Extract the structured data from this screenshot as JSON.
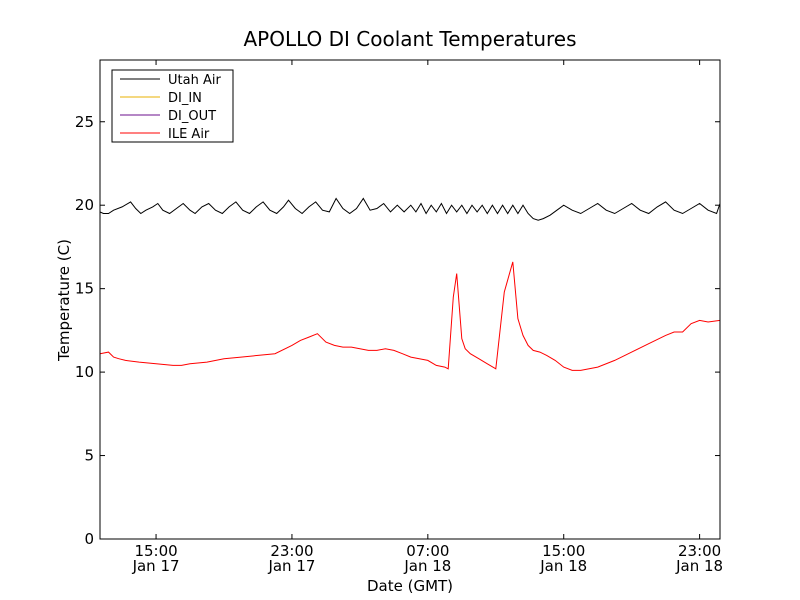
{
  "chart_data": {
    "type": "line",
    "title": "APOLLO DI Coolant Temperatures",
    "xlabel": "Date (GMT)",
    "ylabel": "Temperature (C)",
    "ylim": [
      0,
      28.7
    ],
    "xlim_hours": [
      -3.3,
      33.2
    ],
    "yticks": [
      0,
      5,
      10,
      15,
      20,
      25
    ],
    "xticks": [
      {
        "hour": 0,
        "time": "15:00",
        "date": "Jan 17"
      },
      {
        "hour": 8,
        "time": "23:00",
        "date": "Jan 17"
      },
      {
        "hour": 16,
        "time": "07:00",
        "date": "Jan 18"
      },
      {
        "hour": 24,
        "time": "15:00",
        "date": "Jan 18"
      },
      {
        "hour": 32,
        "time": "23:00",
        "date": "Jan 18"
      }
    ],
    "legend_position": "top-left",
    "series": [
      {
        "name": "Utah Air",
        "color": "#000000",
        "x": [
          -3.3,
          -3.1,
          -2.8,
          -2.5,
          -2.0,
          -1.5,
          -1.2,
          -0.9,
          -0.6,
          -0.2,
          0.1,
          0.4,
          0.8,
          1.2,
          1.6,
          2.0,
          2.3,
          2.7,
          3.1,
          3.5,
          3.9,
          4.3,
          4.7,
          5.1,
          5.5,
          5.9,
          6.3,
          6.7,
          7.1,
          7.5,
          7.8,
          8.2,
          8.6,
          9.0,
          9.4,
          9.8,
          10.2,
          10.6,
          11.0,
          11.4,
          11.8,
          12.2,
          12.6,
          13.0,
          13.4,
          13.8,
          14.2,
          14.6,
          15.0,
          15.3,
          15.6,
          15.9,
          16.2,
          16.5,
          16.8,
          17.1,
          17.4,
          17.7,
          18.0,
          18.3,
          18.6,
          18.9,
          19.2,
          19.5,
          19.8,
          20.1,
          20.4,
          20.7,
          21.0,
          21.3,
          21.6,
          21.9,
          22.2,
          22.5,
          22.8,
          23.2,
          23.6,
          24.0,
          24.5,
          25.0,
          25.5,
          26.0,
          26.5,
          27.0,
          27.5,
          28.0,
          28.5,
          29.0,
          29.5,
          30.0,
          30.5,
          31.0,
          31.5,
          32.0,
          32.5,
          33.0,
          33.2
        ],
        "values": [
          19.6,
          19.5,
          19.5,
          19.7,
          19.9,
          20.2,
          19.8,
          19.5,
          19.7,
          19.9,
          20.1,
          19.7,
          19.5,
          19.8,
          20.1,
          19.7,
          19.5,
          19.9,
          20.1,
          19.7,
          19.5,
          19.9,
          20.2,
          19.7,
          19.5,
          19.9,
          20.2,
          19.7,
          19.5,
          19.9,
          20.3,
          19.8,
          19.5,
          19.9,
          20.2,
          19.7,
          19.6,
          20.4,
          19.8,
          19.5,
          19.8,
          20.4,
          19.7,
          19.8,
          20.1,
          19.6,
          20.0,
          19.6,
          20.0,
          19.6,
          20.1,
          19.5,
          20.0,
          19.6,
          20.1,
          19.5,
          20.0,
          19.6,
          20.0,
          19.5,
          20.0,
          19.6,
          20.0,
          19.5,
          20.0,
          19.5,
          20.0,
          19.5,
          20.0,
          19.5,
          20.0,
          19.5,
          19.2,
          19.1,
          19.2,
          19.4,
          19.7,
          20.0,
          19.7,
          19.5,
          19.8,
          20.1,
          19.7,
          19.5,
          19.8,
          20.1,
          19.7,
          19.5,
          19.9,
          20.2,
          19.7,
          19.5,
          19.8,
          20.1,
          19.7,
          19.5,
          20.1
        ]
      },
      {
        "name": "DI_IN",
        "color": "#e8b000",
        "x": [],
        "values": []
      },
      {
        "name": "DI_OUT",
        "color": "#6b0f8c",
        "x": [],
        "values": []
      },
      {
        "name": "ILE Air",
        "color": "#ff0000",
        "x": [
          -3.3,
          -2.8,
          -2.5,
          -2.2,
          -1.8,
          -1.0,
          0.0,
          1.0,
          1.5,
          2.0,
          3.0,
          4.0,
          5.0,
          6.0,
          7.0,
          8.0,
          8.5,
          9.0,
          9.5,
          10.0,
          10.5,
          11.0,
          11.5,
          12.0,
          12.5,
          13.0,
          13.5,
          14.0,
          14.5,
          15.0,
          15.5,
          16.0,
          16.5,
          17.0,
          17.2,
          17.5,
          17.7,
          18.0,
          18.2,
          18.5,
          19.0,
          19.5,
          20.0,
          20.5,
          21.0,
          21.3,
          21.6,
          21.9,
          22.2,
          22.6,
          23.0,
          23.5,
          24.0,
          24.5,
          25.0,
          26.0,
          27.0,
          28.0,
          29.0,
          30.0,
          30.5,
          31.0,
          31.5,
          32.0,
          32.5,
          33.2
        ],
        "values": [
          11.1,
          11.2,
          10.9,
          10.8,
          10.7,
          10.6,
          10.5,
          10.4,
          10.4,
          10.5,
          10.6,
          10.8,
          10.9,
          11.0,
          11.1,
          11.6,
          11.9,
          12.1,
          12.3,
          11.8,
          11.6,
          11.5,
          11.5,
          11.4,
          11.3,
          11.3,
          11.4,
          11.3,
          11.1,
          10.9,
          10.8,
          10.7,
          10.4,
          10.3,
          10.2,
          14.5,
          15.9,
          12.0,
          11.4,
          11.1,
          10.8,
          10.5,
          10.2,
          14.8,
          16.6,
          13.2,
          12.2,
          11.6,
          11.3,
          11.2,
          11.0,
          10.7,
          10.3,
          10.1,
          10.1,
          10.3,
          10.7,
          11.2,
          11.7,
          12.2,
          12.4,
          12.4,
          12.9,
          13.1,
          13.0,
          13.1
        ]
      }
    ]
  }
}
